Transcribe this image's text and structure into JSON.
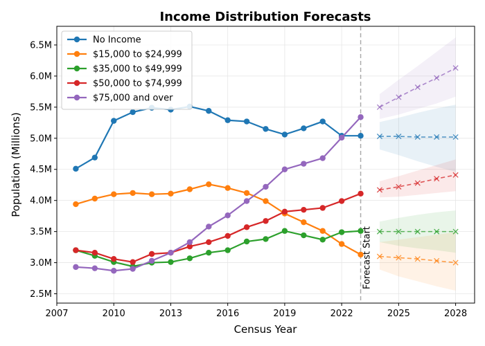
{
  "chart_data": {
    "type": "line",
    "title": "Income Distribution Forecasts",
    "xlabel": "Census Year",
    "ylabel": "Population (Millions)",
    "xlim": [
      2007,
      2029
    ],
    "ylim": [
      2.35,
      6.8
    ],
    "xticks": [
      2007,
      2010,
      2013,
      2016,
      2019,
      2022,
      2025,
      2028
    ],
    "yticks": [
      2.5,
      3.0,
      3.5,
      4.0,
      4.5,
      5.0,
      5.5,
      6.0,
      6.5
    ],
    "ytick_labels": [
      "2.5M",
      "3.0M",
      "3.5M",
      "4.0M",
      "4.5M",
      "5.0M",
      "5.5M",
      "6.0M",
      "6.5M"
    ],
    "grid": true,
    "legend_position": "top-left",
    "forecast_start": 2023,
    "forecast_label": "Forecast Start",
    "x": [
      2008,
      2009,
      2010,
      2011,
      2012,
      2013,
      2014,
      2015,
      2016,
      2017,
      2018,
      2019,
      2020,
      2021,
      2022,
      2023
    ],
    "forecast_x": [
      2024,
      2025,
      2026,
      2027,
      2028
    ],
    "series": [
      {
        "name": "No Income",
        "color": "#1f77b4",
        "values": [
          4.51,
          4.69,
          5.28,
          5.42,
          5.49,
          5.46,
          5.51,
          5.44,
          5.29,
          5.27,
          5.15,
          5.06,
          5.16,
          5.27,
          5.04,
          5.04
        ],
        "forecast": [
          5.03,
          5.03,
          5.02,
          5.02,
          5.02
        ],
        "forecast_low": [
          4.82,
          4.73,
          4.63,
          4.54,
          4.46
        ],
        "forecast_high": [
          5.26,
          5.33,
          5.41,
          5.48,
          5.54
        ]
      },
      {
        "name": "$15,000 to $24,999",
        "color": "#ff7f0e",
        "values": [
          3.94,
          4.03,
          4.1,
          4.12,
          4.1,
          4.11,
          4.18,
          4.26,
          4.2,
          4.12,
          3.99,
          3.79,
          3.65,
          3.51,
          3.3,
          3.13
        ],
        "forecast": [
          3.1,
          3.08,
          3.06,
          3.03,
          3.0
        ],
        "forecast_low": [
          2.89,
          2.78,
          2.7,
          2.62,
          2.55
        ],
        "forecast_high": [
          3.33,
          3.37,
          3.41,
          3.45,
          3.49
        ]
      },
      {
        "name": "$35,000 to $49,999",
        "color": "#2ca02c",
        "values": [
          3.2,
          3.11,
          3.01,
          2.94,
          3.0,
          3.01,
          3.07,
          3.16,
          3.2,
          3.34,
          3.38,
          3.51,
          3.44,
          3.37,
          3.49,
          3.51
        ],
        "forecast": [
          3.5,
          3.5,
          3.5,
          3.5,
          3.5
        ],
        "forecast_low": [
          3.33,
          3.27,
          3.23,
          3.2,
          3.16
        ],
        "forecast_high": [
          3.66,
          3.72,
          3.77,
          3.81,
          3.84
        ]
      },
      {
        "name": "$50,000 to $74,999",
        "color": "#d62728",
        "values": [
          3.2,
          3.16,
          3.06,
          3.01,
          3.14,
          3.16,
          3.26,
          3.33,
          3.43,
          3.57,
          3.67,
          3.82,
          3.85,
          3.88,
          3.99,
          4.11
        ],
        "forecast": [
          4.17,
          4.22,
          4.28,
          4.35,
          4.41
        ],
        "forecast_low": [
          4.05,
          4.06,
          4.09,
          4.12,
          4.15
        ],
        "forecast_high": [
          4.31,
          4.39,
          4.48,
          4.57,
          4.66
        ]
      },
      {
        "name": "$75,000 and over",
        "color": "#9467bd",
        "values": [
          2.93,
          2.91,
          2.87,
          2.9,
          3.03,
          3.16,
          3.33,
          3.58,
          3.76,
          3.99,
          4.22,
          4.5,
          4.59,
          4.68,
          5.01,
          5.34
        ],
        "forecast": [
          5.5,
          5.66,
          5.82,
          5.97,
          6.13
        ],
        "forecast_low": [
          5.31,
          5.38,
          5.47,
          5.56,
          5.67
        ],
        "forecast_high": [
          5.71,
          5.94,
          6.16,
          6.39,
          6.62
        ]
      }
    ]
  }
}
